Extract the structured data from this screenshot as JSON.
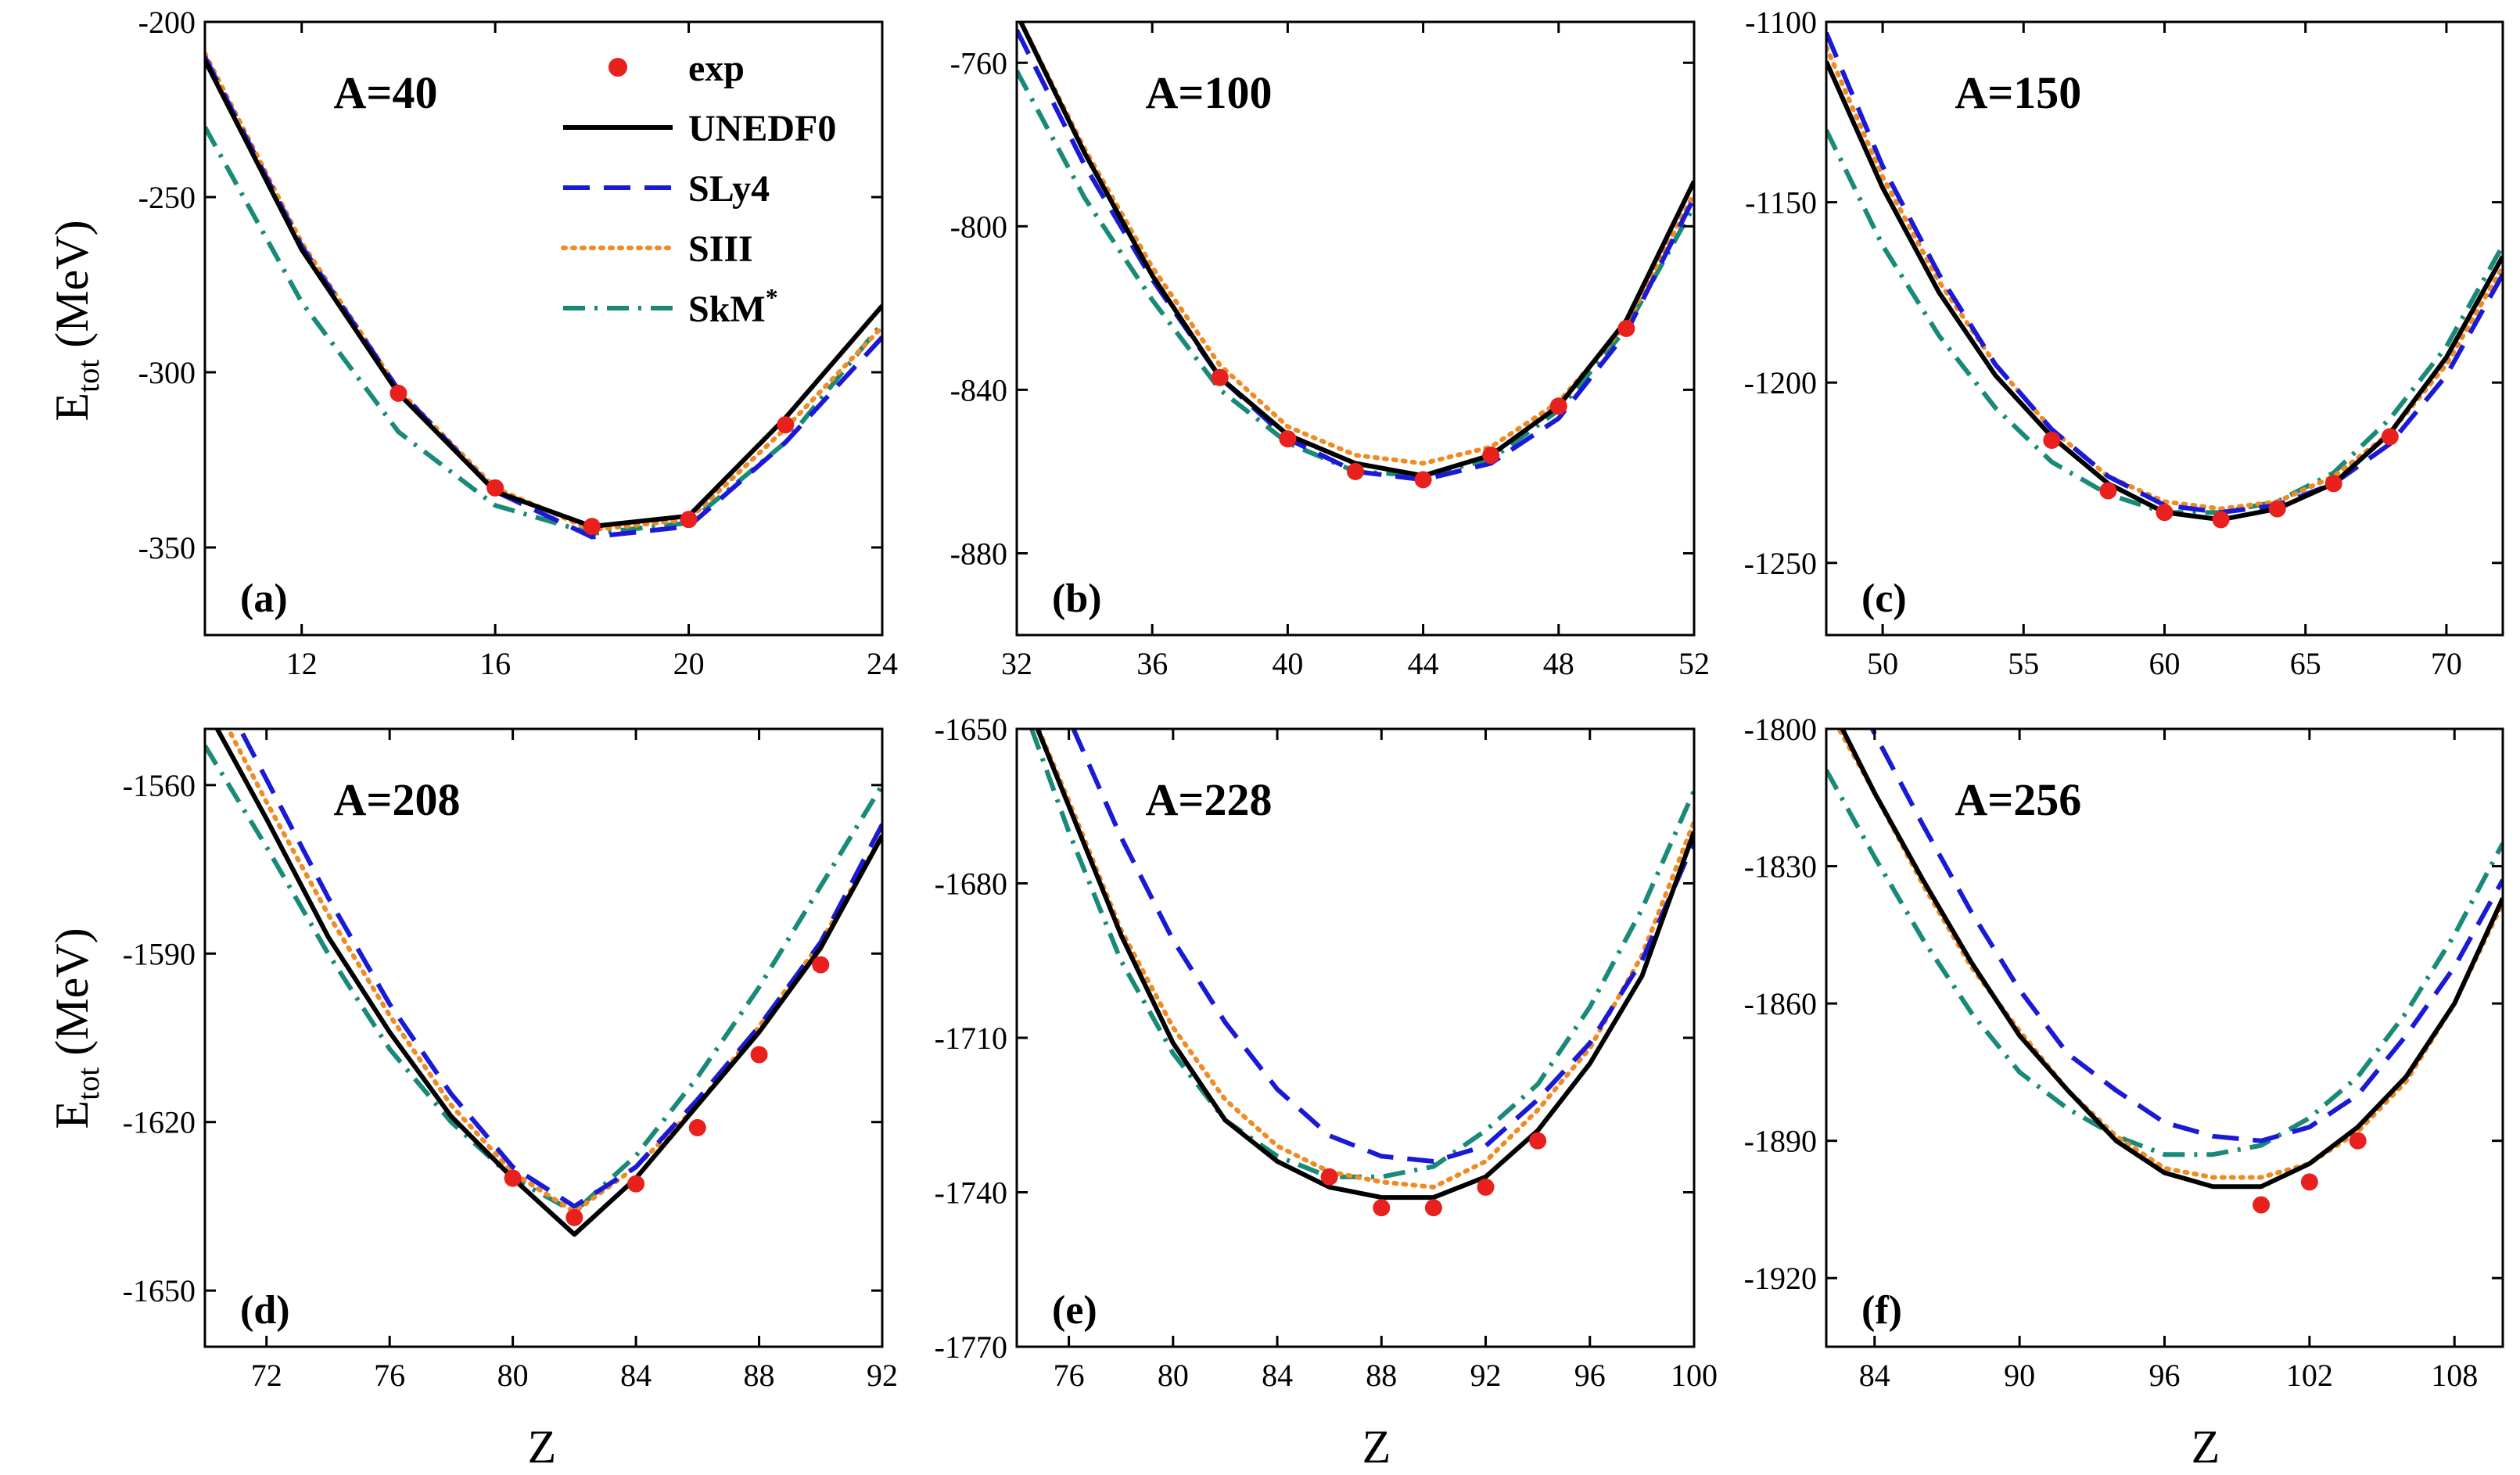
{
  "figure": {
    "ylabel": "E",
    "ylabel_sub": "tot",
    "ylabel_unit": "(MeV)",
    "xlabel": "Z"
  },
  "legend": {
    "placement": "inside panel (a), top-right",
    "entries": [
      {
        "label": "exp",
        "sup": "",
        "style": "marker",
        "color": "#e8201e"
      },
      {
        "label": "UNEDF0",
        "sup": "",
        "style": "solid",
        "color": "#000000"
      },
      {
        "label": "SLy4",
        "sup": "",
        "style": "dash",
        "color": "#1a1ad6"
      },
      {
        "label": "SIII",
        "sup": "",
        "style": "dot",
        "color": "#f08a22"
      },
      {
        "label": "SkM",
        "sup": "*",
        "style": "dashdot",
        "color": "#1a8a78"
      }
    ]
  },
  "chart_data": [
    {
      "type": "line",
      "letter": "(a)",
      "title": "A=40",
      "xlim": [
        10,
        24
      ],
      "ylim": [
        -375,
        -200
      ],
      "xticks": [
        "12",
        "16",
        "20",
        "24"
      ],
      "yticks": [
        "-200",
        "-250",
        "-300",
        "-350"
      ],
      "series": [
        {
          "name": "UNEDF0",
          "x": [
            10,
            12,
            14,
            16,
            18,
            20,
            22,
            24
          ],
          "y": [
            -211,
            -265,
            -306,
            -334,
            -344,
            -341,
            -313,
            -281
          ]
        },
        {
          "name": "SLy4",
          "x": [
            10,
            12,
            14,
            16,
            18,
            20,
            22,
            24
          ],
          "y": [
            -210,
            -264,
            -305,
            -334,
            -347,
            -344,
            -320,
            -290
          ]
        },
        {
          "name": "SIII",
          "x": [
            10,
            12,
            14,
            16,
            18,
            20,
            22,
            24
          ],
          "y": [
            -209,
            -263,
            -305,
            -333,
            -345,
            -342,
            -316,
            -287
          ]
        },
        {
          "name": "SkM*",
          "x": [
            10,
            12,
            14,
            16,
            18,
            20,
            22,
            24
          ],
          "y": [
            -230,
            -280,
            -317,
            -338,
            -346,
            -343,
            -320,
            -286
          ]
        },
        {
          "name": "exp",
          "x": [
            14,
            16,
            18,
            20,
            22
          ],
          "y": [
            -306,
            -333,
            -344,
            -342,
            -315
          ]
        }
      ]
    },
    {
      "type": "line",
      "letter": "(b)",
      "title": "A=100",
      "xlim": [
        32,
        52
      ],
      "ylim": [
        -900,
        -750
      ],
      "xticks": [
        "32",
        "36",
        "40",
        "44",
        "48",
        "52"
      ],
      "yticks": [
        "-760",
        "-800",
        "-840",
        "-880"
      ],
      "series": [
        {
          "name": "UNEDF0",
          "x": [
            32,
            34,
            36,
            38,
            40,
            42,
            44,
            46,
            48,
            50,
            52
          ],
          "y": [
            -748,
            -782,
            -812,
            -837,
            -851,
            -858,
            -861,
            -856,
            -844,
            -823,
            -789
          ]
        },
        {
          "name": "SLy4",
          "x": [
            32,
            34,
            36,
            38,
            40,
            42,
            44,
            46,
            48,
            50,
            52
          ],
          "y": [
            -752,
            -785,
            -813,
            -837,
            -852,
            -860,
            -862,
            -858,
            -847,
            -826,
            -793
          ]
        },
        {
          "name": "SIII",
          "x": [
            32,
            34,
            36,
            38,
            40,
            42,
            44,
            46,
            48,
            50,
            52
          ],
          "y": [
            -748,
            -781,
            -810,
            -834,
            -849,
            -856,
            -858,
            -854,
            -843,
            -824,
            -792
          ]
        },
        {
          "name": "SkM*",
          "x": [
            32,
            34,
            36,
            38,
            40,
            42,
            44,
            46,
            48,
            50,
            52
          ],
          "y": [
            -762,
            -793,
            -818,
            -840,
            -853,
            -860,
            -861,
            -857,
            -845,
            -825,
            -795
          ]
        },
        {
          "name": "exp",
          "x": [
            38,
            40,
            42,
            44,
            46,
            48,
            50
          ],
          "y": [
            -837,
            -852,
            -860,
            -862,
            -856,
            -844,
            -825
          ]
        }
      ]
    },
    {
      "type": "line",
      "letter": "(c)",
      "title": "A=150",
      "xlim": [
        48,
        72
      ],
      "ylim": [
        -1270,
        -1100
      ],
      "xticks": [
        "50",
        "55",
        "60",
        "65",
        "70"
      ],
      "yticks": [
        "-1100",
        "-1150",
        "-1200",
        "-1250"
      ],
      "series": [
        {
          "name": "UNEDF0",
          "x": [
            48,
            50,
            52,
            54,
            56,
            58,
            60,
            62,
            64,
            66,
            68,
            70,
            72
          ],
          "y": [
            -1111,
            -1146,
            -1175,
            -1198,
            -1215,
            -1228,
            -1236,
            -1238,
            -1235,
            -1228,
            -1214,
            -1193,
            -1165
          ]
        },
        {
          "name": "SLy4",
          "x": [
            48,
            50,
            52,
            54,
            56,
            58,
            60,
            62,
            64,
            66,
            68,
            70,
            72
          ],
          "y": [
            -1103,
            -1140,
            -1170,
            -1195,
            -1213,
            -1226,
            -1234,
            -1236,
            -1234,
            -1228,
            -1217,
            -1198,
            -1170
          ]
        },
        {
          "name": "SIII",
          "x": [
            48,
            50,
            52,
            54,
            56,
            58,
            60,
            62,
            64,
            66,
            68,
            70,
            72
          ],
          "y": [
            -1107,
            -1143,
            -1172,
            -1195,
            -1213,
            -1226,
            -1233,
            -1235,
            -1233,
            -1226,
            -1214,
            -1195,
            -1168
          ]
        },
        {
          "name": "SkM*",
          "x": [
            48,
            50,
            52,
            54,
            56,
            58,
            60,
            62,
            64,
            66,
            68,
            70,
            72
          ],
          "y": [
            -1130,
            -1162,
            -1187,
            -1207,
            -1222,
            -1231,
            -1236,
            -1236,
            -1233,
            -1225,
            -1210,
            -1190,
            -1162
          ]
        },
        {
          "name": "exp",
          "x": [
            56,
            58,
            60,
            62,
            64,
            66,
            68
          ],
          "y": [
            -1216,
            -1230,
            -1236,
            -1238,
            -1235,
            -1228,
            -1215
          ]
        }
      ]
    },
    {
      "type": "line",
      "letter": "(d)",
      "title": "A=208",
      "xlim": [
        70,
        92
      ],
      "ylim": [
        -1660,
        -1550
      ],
      "xticks": [
        "72",
        "76",
        "80",
        "84",
        "88",
        "92"
      ],
      "yticks": [
        "-1560",
        "-1590",
        "-1620",
        "-1650"
      ],
      "series": [
        {
          "name": "UNEDF0",
          "x": [
            70,
            72,
            74,
            76,
            78,
            80,
            82,
            84,
            86,
            88,
            90,
            92
          ],
          "y": [
            -1546,
            -1566,
            -1587,
            -1604,
            -1619,
            -1630,
            -1640,
            -1630,
            -1617,
            -1604,
            -1589,
            -1569
          ]
        },
        {
          "name": "SLy4",
          "x": [
            70,
            72,
            74,
            76,
            78,
            80,
            82,
            84,
            86,
            88,
            90,
            92
          ],
          "y": [
            -1538,
            -1559,
            -1580,
            -1599,
            -1615,
            -1628,
            -1635,
            -1628,
            -1616,
            -1603,
            -1588,
            -1567
          ]
        },
        {
          "name": "SIII",
          "x": [
            70,
            72,
            74,
            76,
            78,
            80,
            82,
            84,
            86,
            88,
            90,
            92
          ],
          "y": [
            -1542,
            -1563,
            -1583,
            -1601,
            -1617,
            -1629,
            -1636,
            -1628,
            -1617,
            -1603,
            -1588,
            -1569
          ]
        },
        {
          "name": "SkM*",
          "x": [
            70,
            72,
            74,
            76,
            78,
            80,
            82,
            84,
            86,
            88,
            90,
            92
          ],
          "y": [
            -1553,
            -1571,
            -1590,
            -1607,
            -1620,
            -1630,
            -1636,
            -1626,
            -1612,
            -1596,
            -1578,
            -1560
          ]
        },
        {
          "name": "exp",
          "x": [
            80,
            82,
            84,
            86,
            88,
            90
          ],
          "y": [
            -1630,
            -1637,
            -1631,
            -1621,
            -1608,
            -1592
          ]
        }
      ]
    },
    {
      "type": "line",
      "letter": "(e)",
      "title": "A=228",
      "xlim": [
        74,
        100
      ],
      "ylim": [
        -1770,
        -1650
      ],
      "xticks": [
        "76",
        "80",
        "84",
        "88",
        "92",
        "96",
        "100"
      ],
      "yticks": [
        "-1650",
        "-1680",
        "-1710",
        "-1740",
        "-1770"
      ],
      "series": [
        {
          "name": "UNEDF0",
          "x": [
            74,
            76,
            78,
            80,
            82,
            84,
            86,
            88,
            90,
            92,
            94,
            96,
            98,
            100
          ],
          "y": [
            -1640,
            -1665,
            -1690,
            -1711,
            -1726,
            -1734,
            -1739,
            -1741,
            -1741,
            -1737,
            -1728,
            -1715,
            -1698,
            -1670
          ]
        },
        {
          "name": "SLy4",
          "x": [
            74,
            76,
            78,
            80,
            82,
            84,
            86,
            88,
            90,
            92,
            94,
            96,
            98,
            100
          ],
          "y": [
            -1620,
            -1648,
            -1671,
            -1691,
            -1707,
            -1720,
            -1729,
            -1733,
            -1734,
            -1731,
            -1722,
            -1711,
            -1695,
            -1672
          ]
        },
        {
          "name": "SIII",
          "x": [
            74,
            76,
            78,
            80,
            82,
            84,
            86,
            88,
            90,
            92,
            94,
            96,
            98,
            100
          ],
          "y": [
            -1640,
            -1664,
            -1689,
            -1708,
            -1722,
            -1731,
            -1736,
            -1738,
            -1739,
            -1734,
            -1724,
            -1712,
            -1694,
            -1668
          ]
        },
        {
          "name": "SkM*",
          "x": [
            74,
            76,
            78,
            80,
            82,
            84,
            86,
            88,
            90,
            92,
            94,
            96,
            98,
            100
          ],
          "y": [
            -1642,
            -1670,
            -1695,
            -1713,
            -1726,
            -1733,
            -1737,
            -1737,
            -1735,
            -1728,
            -1719,
            -1704,
            -1685,
            -1662
          ]
        },
        {
          "name": "exp",
          "x": [
            86,
            88,
            90,
            92,
            94
          ],
          "y": [
            -1737,
            -1743,
            -1743,
            -1739,
            -1730
          ]
        }
      ]
    },
    {
      "type": "line",
      "letter": "(f)",
      "title": "A=256",
      "xlim": [
        82,
        110
      ],
      "ylim": [
        -1935,
        -1800
      ],
      "xticks": [
        "84",
        "90",
        "96",
        "102",
        "108"
      ],
      "yticks": [
        "-1800",
        "-1830",
        "-1860",
        "-1890",
        "-1920"
      ],
      "series": [
        {
          "name": "UNEDF0",
          "x": [
            82,
            84,
            86,
            88,
            90,
            92,
            94,
            96,
            98,
            100,
            102,
            104,
            106,
            108,
            110
          ],
          "y": [
            -1793,
            -1814,
            -1833,
            -1851,
            -1867,
            -1879,
            -1890,
            -1897,
            -1900,
            -1900,
            -1895,
            -1887,
            -1876,
            -1860,
            -1837
          ]
        },
        {
          "name": "SLy4",
          "x": [
            82,
            84,
            86,
            88,
            90,
            92,
            94,
            96,
            98,
            100,
            102,
            104,
            106,
            108,
            110
          ],
          "y": [
            -1780,
            -1801,
            -1821,
            -1840,
            -1857,
            -1871,
            -1879,
            -1886,
            -1889,
            -1890,
            -1887,
            -1880,
            -1867,
            -1852,
            -1833
          ]
        },
        {
          "name": "SIII",
          "x": [
            82,
            84,
            86,
            88,
            90,
            92,
            94,
            96,
            98,
            100,
            102,
            104,
            106,
            108,
            110
          ],
          "y": [
            -1795,
            -1814,
            -1834,
            -1852,
            -1866,
            -1879,
            -1889,
            -1896,
            -1898,
            -1898,
            -1895,
            -1888,
            -1877,
            -1860,
            -1838
          ]
        },
        {
          "name": "SkM*",
          "x": [
            82,
            84,
            86,
            88,
            90,
            92,
            94,
            96,
            98,
            100,
            102,
            104,
            106,
            108,
            110
          ],
          "y": [
            -1809,
            -1828,
            -1846,
            -1862,
            -1875,
            -1883,
            -1889,
            -1893,
            -1893,
            -1891,
            -1885,
            -1876,
            -1862,
            -1845,
            -1825
          ]
        },
        {
          "name": "exp",
          "x": [
            100,
            102,
            104
          ],
          "y": [
            -1904,
            -1899,
            -1890
          ]
        }
      ]
    }
  ]
}
